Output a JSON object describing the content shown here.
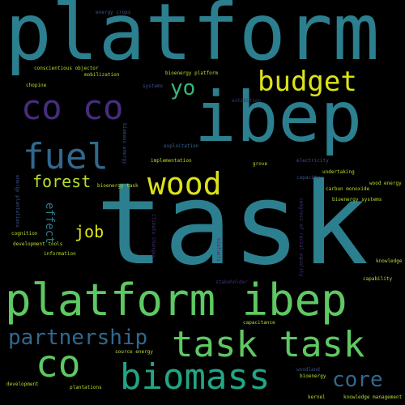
{
  "title": "word cloud",
  "palette": {
    "background": "#000000",
    "teal": "#2c7f8e",
    "blue": "#31688e",
    "green": "#5ec962",
    "green_mid": "#35b779",
    "seafoam": "#21a685",
    "yellow": "#dde318",
    "yellow_green": "#b5de2b",
    "purple": "#472d7b",
    "indigo": "#3b528b",
    "dark_purple": "#440154"
  },
  "words": {
    "platform": "platform",
    "task_big": "task",
    "ibep": "ibep",
    "platform_ibep": "platform ibep",
    "co_co": "co co",
    "budget": "budget",
    "yo": "yo",
    "fuel": "fuel",
    "wood": "wood",
    "forest": "forest",
    "task_task": "task task",
    "partnership": "partnership",
    "co": "co",
    "biomass": "biomass",
    "core": "core",
    "job": "job",
    "effect": "effect",
    "energy_crops": "energy crops",
    "conscientious_objector": "conscientious objector",
    "mobilization": "mobilization",
    "bioenergy_platform": "bioenergy platform",
    "chopine": "chopine",
    "systems": "systems",
    "exhibition": "exhibition",
    "exploitation": "exploitation",
    "implementation": "implementation",
    "electricity": "electricity",
    "grove": "grove",
    "bioenergy_task": "bioenergy task",
    "capacity": "capacity",
    "undertaking": "undertaking",
    "wood_energy": "wood energy",
    "carbon_monoxide": "carbon monoxide",
    "bioenergy_systems": "bioenergy systems",
    "cognition": "cognition",
    "development_tools": "development tools",
    "information": "information",
    "knowledge": "knowledge",
    "capability": "capability",
    "stakeholder": "stakeholder",
    "capacitance": "capacitance",
    "source_energy": "source energy",
    "woodland": "woodland",
    "bioenergy": "bioenergy",
    "development": "development",
    "plantations": "plantations",
    "kernel": "kernel",
    "knowledge_management": "knowledge management",
    "energy_plantations": "energy plantations",
    "biomass_energy": "biomass energy",
    "climate_changes": "climate changes",
    "biofuels": "biofuels",
    "congress_of_racial_equality": "congress of racial equality"
  }
}
